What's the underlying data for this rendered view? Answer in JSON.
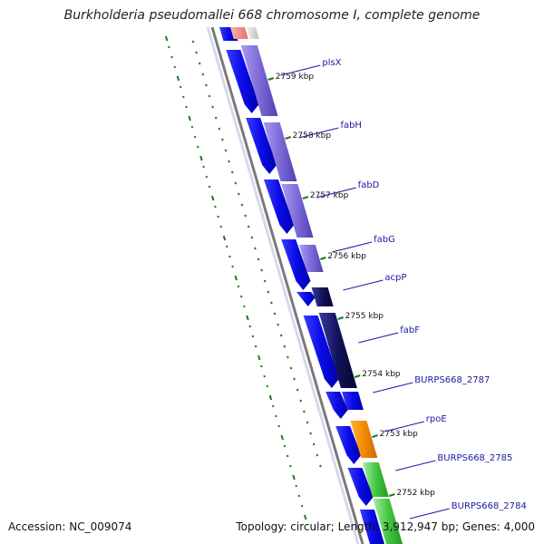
{
  "title": "Burkholderia pseudomallei 668 chromosome I, complete genome",
  "footer": {
    "accession_label": "Accession:",
    "accession": "NC_009074",
    "topology_label": "Topology:",
    "topology": "circular",
    "length_label": "Length:",
    "length": "3,912,947 bp",
    "genes_label": "Genes:",
    "genes": "4,000"
  },
  "ticks": [
    "2759 kbp",
    "2758 kbp",
    "2757 kbp",
    "2756 kbp",
    "2755 kbp",
    "2754 kbp",
    "2753 kbp",
    "2752 kbp"
  ],
  "genes": [
    {
      "name": "plsX",
      "color": "#7f6fd6"
    },
    {
      "name": "fabH",
      "color": "#7f6fd6"
    },
    {
      "name": "fabD",
      "color": "#7f6fd6"
    },
    {
      "name": "fabG",
      "color": "#7f6fd6"
    },
    {
      "name": "acpP",
      "color": "#1a1a70"
    },
    {
      "name": "fabF",
      "color": "#1a1a70"
    },
    {
      "name": "BURPS668_2787",
      "color": "#2222cc"
    },
    {
      "name": "rpoE",
      "color": "#f08a00"
    },
    {
      "name": "BURPS668_2785",
      "color": "#2222cc"
    },
    {
      "name": "BURPS668_2784",
      "color": "#33bb33"
    }
  ],
  "colors": {
    "backbone": "#7a7a7a",
    "cds": "#1010e0",
    "label": "#1a1aa0",
    "gc_dots": "#1b7a1b",
    "tick": "#1b7a1b"
  }
}
